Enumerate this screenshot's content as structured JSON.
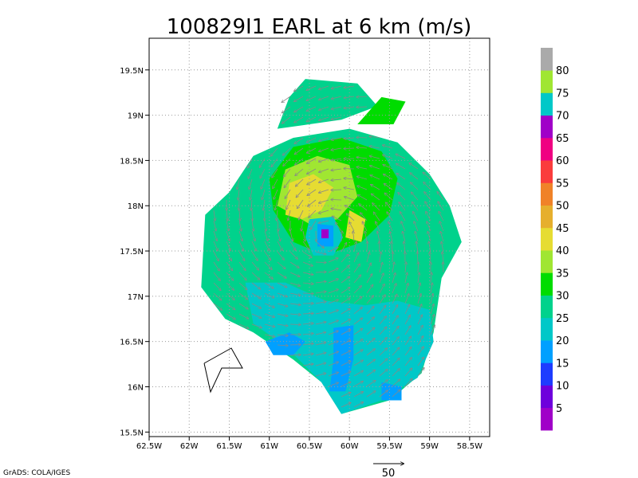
{
  "chart_data": {
    "type": "heatmap",
    "title": "100829I1 EARL at 6 km (m/s)",
    "xlim": [
      -62.5,
      -58.25
    ],
    "ylim": [
      15.45,
      19.85
    ],
    "x_ticks": [
      {
        "value": -62.5,
        "label": "62.5W"
      },
      {
        "value": -62.0,
        "label": "62W"
      },
      {
        "value": -61.5,
        "label": "61.5W"
      },
      {
        "value": -61.0,
        "label": "61W"
      },
      {
        "value": -60.5,
        "label": "60.5W"
      },
      {
        "value": -60.0,
        "label": "60W"
      },
      {
        "value": -59.5,
        "label": "59.5W"
      },
      {
        "value": -59.0,
        "label": "59W"
      },
      {
        "value": -58.5,
        "label": "58.5W"
      }
    ],
    "y_ticks": [
      {
        "value": 15.5,
        "label": "15.5N"
      },
      {
        "value": 16.0,
        "label": "16N"
      },
      {
        "value": 16.5,
        "label": "16.5N"
      },
      {
        "value": 17.0,
        "label": "17N"
      },
      {
        "value": 17.5,
        "label": "17.5N"
      },
      {
        "value": 18.0,
        "label": "18N"
      },
      {
        "value": 18.5,
        "label": "18.5N"
      },
      {
        "value": 19.0,
        "label": "19N"
      },
      {
        "value": 19.5,
        "label": "19.5N"
      }
    ],
    "grid": true,
    "storm_center": {
      "lon": -60.28,
      "lat": 17.68
    },
    "colorbar": {
      "levels": [
        5,
        10,
        15,
        20,
        25,
        30,
        35,
        40,
        45,
        50,
        55,
        60,
        65,
        70,
        75,
        80
      ],
      "colors": [
        "#a000c8",
        "#6e00dc",
        "#1e3cff",
        "#00a0ff",
        "#00c8c8",
        "#00d28c",
        "#00dc00",
        "#a0e632",
        "#e6dc32",
        "#e6af2d",
        "#f08228",
        "#fa3c3c",
        "#f00082",
        "#a000c8",
        "#00c8c8",
        "#a0e632",
        "#aaaaaa"
      ]
    },
    "reference_vector": {
      "value": 50,
      "label": "50"
    },
    "wind_regions": [
      {
        "level": 25,
        "points": [
          [
            -61.85,
            17.1
          ],
          [
            -61.8,
            17.9
          ],
          [
            -61.5,
            18.15
          ],
          [
            -61.2,
            18.55
          ],
          [
            -60.7,
            18.75
          ],
          [
            -60.0,
            18.85
          ],
          [
            -59.4,
            18.7
          ],
          [
            -59.0,
            18.35
          ],
          [
            -58.75,
            18.0
          ],
          [
            -58.6,
            17.6
          ],
          [
            -58.85,
            17.2
          ],
          [
            -58.95,
            16.6
          ],
          [
            -59.1,
            16.15
          ],
          [
            -59.5,
            15.85
          ],
          [
            -60.1,
            15.7
          ],
          [
            -60.35,
            16.05
          ],
          [
            -60.7,
            16.3
          ],
          [
            -61.2,
            16.6
          ],
          [
            -61.55,
            16.75
          ]
        ]
      },
      {
        "level": 25,
        "points": [
          [
            -60.9,
            18.85
          ],
          [
            -60.75,
            19.2
          ],
          [
            -60.55,
            19.4
          ],
          [
            -59.9,
            19.35
          ],
          [
            -59.65,
            19.1
          ],
          [
            -60.1,
            18.95
          ],
          [
            -60.5,
            18.9
          ]
        ]
      },
      {
        "level": 20,
        "points": [
          [
            -61.3,
            17.15
          ],
          [
            -60.8,
            17.15
          ],
          [
            -60.3,
            16.95
          ],
          [
            -59.8,
            16.9
          ],
          [
            -59.4,
            16.95
          ],
          [
            -59.0,
            16.85
          ],
          [
            -58.95,
            16.5
          ],
          [
            -59.15,
            16.1
          ],
          [
            -59.6,
            15.85
          ],
          [
            -60.1,
            15.7
          ],
          [
            -60.35,
            16.05
          ],
          [
            -60.8,
            16.45
          ],
          [
            -61.2,
            16.7
          ]
        ]
      },
      {
        "level": 30,
        "points": [
          [
            -61.0,
            18.3
          ],
          [
            -60.7,
            18.65
          ],
          [
            -60.1,
            18.75
          ],
          [
            -59.6,
            18.6
          ],
          [
            -59.4,
            18.3
          ],
          [
            -59.5,
            17.9
          ],
          [
            -59.85,
            17.6
          ],
          [
            -60.3,
            17.45
          ],
          [
            -60.7,
            17.6
          ],
          [
            -60.95,
            17.95
          ]
        ]
      },
      {
        "level": 30,
        "points": [
          [
            -59.9,
            18.9
          ],
          [
            -59.6,
            19.2
          ],
          [
            -59.3,
            19.15
          ],
          [
            -59.45,
            18.9
          ]
        ]
      },
      {
        "level": 35,
        "points": [
          [
            -60.9,
            18.0
          ],
          [
            -60.8,
            18.4
          ],
          [
            -60.4,
            18.55
          ],
          [
            -60.0,
            18.45
          ],
          [
            -59.9,
            18.1
          ],
          [
            -60.15,
            17.85
          ],
          [
            -60.5,
            17.8
          ]
        ]
      },
      {
        "level": 40,
        "points": [
          [
            -60.8,
            17.9
          ],
          [
            -60.75,
            18.25
          ],
          [
            -60.45,
            18.35
          ],
          [
            -60.2,
            18.2
          ],
          [
            -60.35,
            17.95
          ],
          [
            -60.6,
            17.85
          ]
        ]
      },
      {
        "level": 40,
        "points": [
          [
            -60.05,
            17.65
          ],
          [
            -60.0,
            17.95
          ],
          [
            -59.8,
            17.85
          ],
          [
            -59.85,
            17.6
          ]
        ]
      },
      {
        "level": 20,
        "points": [
          [
            -60.5,
            17.85
          ],
          [
            -60.2,
            17.88
          ],
          [
            -60.08,
            17.65
          ],
          [
            -60.2,
            17.45
          ],
          [
            -60.45,
            17.45
          ],
          [
            -60.55,
            17.65
          ]
        ]
      },
      {
        "level": 15,
        "points": [
          [
            -60.4,
            17.8
          ],
          [
            -60.2,
            17.78
          ],
          [
            -60.2,
            17.55
          ],
          [
            -60.4,
            17.55
          ]
        ]
      },
      {
        "level": 15,
        "points": [
          [
            -60.2,
            16.65
          ],
          [
            -59.95,
            16.68
          ],
          [
            -59.95,
            16.3
          ],
          [
            -60.05,
            15.95
          ],
          [
            -60.25,
            15.95
          ],
          [
            -60.2,
            16.3
          ]
        ]
      },
      {
        "level": 15,
        "points": [
          [
            -61.05,
            16.5
          ],
          [
            -60.75,
            16.6
          ],
          [
            -60.55,
            16.5
          ],
          [
            -60.7,
            16.35
          ],
          [
            -60.95,
            16.35
          ]
        ]
      },
      {
        "level": 15,
        "points": [
          [
            -59.6,
            16.05
          ],
          [
            -59.35,
            16.0
          ],
          [
            -59.35,
            15.85
          ],
          [
            -59.6,
            15.85
          ]
        ]
      },
      {
        "level": 65,
        "points": [
          [
            -60.35,
            17.74
          ],
          [
            -60.26,
            17.74
          ],
          [
            -60.26,
            17.64
          ],
          [
            -60.35,
            17.64
          ]
        ]
      }
    ]
  }
}
